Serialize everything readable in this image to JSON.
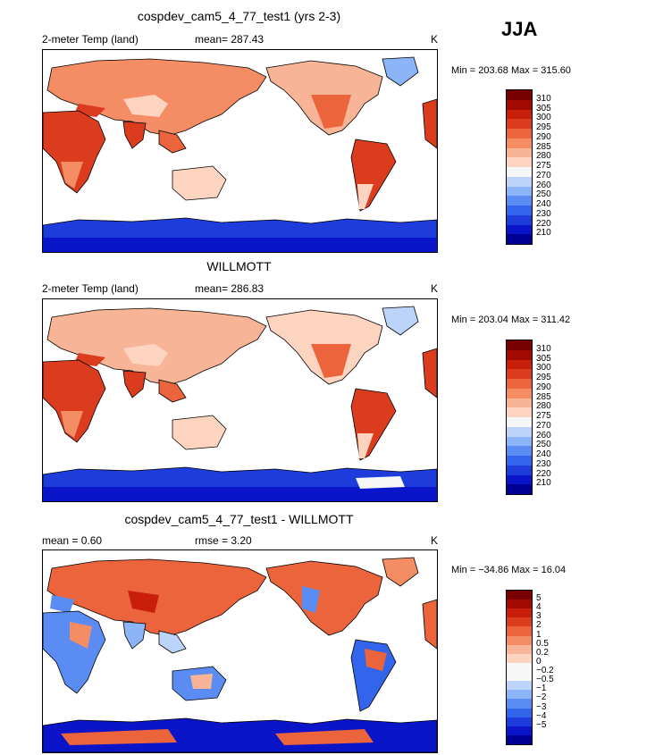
{
  "season": "JJA",
  "colors": {
    "abs": [
      "#000096",
      "#0a14c8",
      "#1e3cdc",
      "#3264ec",
      "#5a8cf4",
      "#8cb4f8",
      "#bcd4fa",
      "#f6f6f6",
      "#fcd4c0",
      "#f8b496",
      "#f48c64",
      "#ec643c",
      "#dc3c1e",
      "#c81e0a",
      "#a00a00",
      "#780000"
    ],
    "diff": [
      "#000096",
      "#0a14c8",
      "#1e3cdc",
      "#3264ec",
      "#5a8cf4",
      "#8cb4f8",
      "#bcd4fa",
      "#f6f6f6",
      "#f6f6f6",
      "#fcd4c0",
      "#f8b496",
      "#f48c64",
      "#ec643c",
      "#dc3c1e",
      "#c81e0a",
      "#a00a00",
      "#780000"
    ]
  },
  "panels": [
    {
      "title": "cospdev_cam5_4_77_test1 (yrs 2-3)",
      "left_label": "2-meter Temp (land)",
      "mean_label": "mean= 287.43",
      "rmse_label": "",
      "units": "K",
      "minmax": "Min = 203.68 Max = 315.60",
      "scale": "abs",
      "labels": [
        "310",
        "305",
        "300",
        "295",
        "290",
        "285",
        "280",
        "275",
        "270",
        "260",
        "250",
        "240",
        "230",
        "220",
        "210"
      ]
    },
    {
      "title": "WILLMOTT",
      "left_label": "2-meter Temp (land)",
      "mean_label": "mean= 286.83",
      "rmse_label": "",
      "units": "K",
      "minmax": "Min = 203.04 Max = 311.42",
      "scale": "abs",
      "labels": [
        "310",
        "305",
        "300",
        "295",
        "290",
        "285",
        "280",
        "275",
        "270",
        "260",
        "250",
        "240",
        "230",
        "220",
        "210"
      ]
    },
    {
      "title": "cospdev_cam5_4_77_test1 - WILLMOTT",
      "left_label": "mean =    0.60",
      "mean_label": "",
      "rmse_label": "rmse =    3.20",
      "units": "K",
      "minmax": "Min = −34.86 Max =  16.04",
      "scale": "diff",
      "labels": [
        "5",
        "4",
        "3",
        "2",
        "1",
        "0.5",
        "0.2",
        "0",
        "−0.2",
        "−0.5",
        "−1",
        "−2",
        "−3",
        "−4",
        "−5"
      ]
    }
  ]
}
